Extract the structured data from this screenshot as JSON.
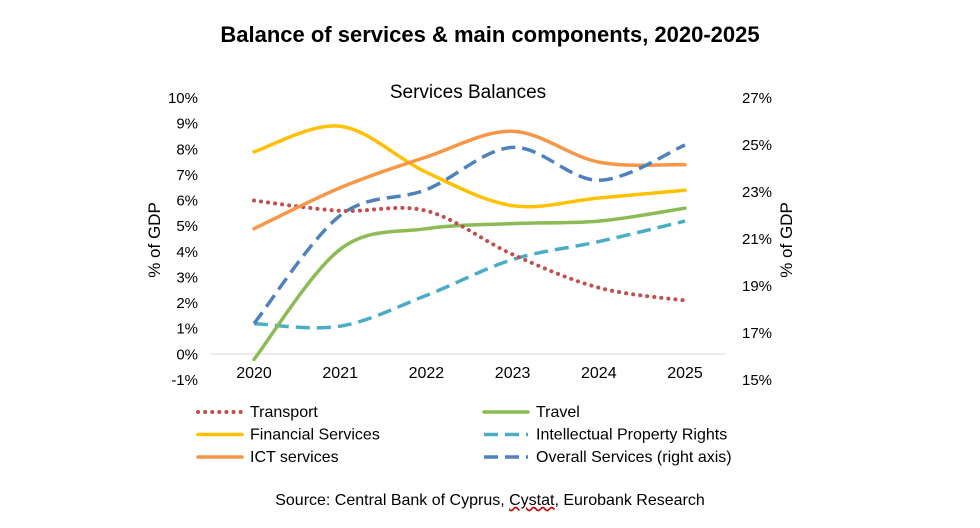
{
  "page": {
    "title": "Balance of services & main components, 2020-2025",
    "source_prefix": "Source: Central Bank of Cyprus, ",
    "source_cystat": "Cystat",
    "source_suffix": ", Eurobank Research"
  },
  "chart_data": {
    "type": "line",
    "title": "Services Balances",
    "ylabel": "% of GDP",
    "y2label": "% of GDP",
    "categories": [
      "2020",
      "2021",
      "2022",
      "2023",
      "2024",
      "2025"
    ],
    "ylim": [
      -1,
      10
    ],
    "y2lim": [
      15,
      27
    ],
    "yticks": [
      "-1%",
      "0%",
      "1%",
      "2%",
      "3%",
      "4%",
      "5%",
      "6%",
      "7%",
      "8%",
      "9%",
      "10%"
    ],
    "y2ticks": [
      "15%",
      "17%",
      "19%",
      "21%",
      "23%",
      "25%",
      "27%"
    ],
    "grid": false,
    "legend_position": "bottom",
    "series": [
      {
        "name": "Transport",
        "axis": "left",
        "color": "#C0504D",
        "style": "dotted",
        "values": [
          6.0,
          5.6,
          5.6,
          3.9,
          2.6,
          2.1
        ]
      },
      {
        "name": "Travel",
        "axis": "left",
        "color": "#8CBB54",
        "style": "solid",
        "values": [
          -0.2,
          4.1,
          4.9,
          5.1,
          5.2,
          5.7
        ]
      },
      {
        "name": "Financial Services",
        "axis": "left",
        "color": "#FFC000",
        "style": "solid",
        "values": [
          7.9,
          8.9,
          7.1,
          5.8,
          6.1,
          6.4
        ]
      },
      {
        "name": "Intellectual Property Rights",
        "axis": "left",
        "color": "#4BACC6",
        "style": "dashed",
        "values": [
          1.2,
          1.1,
          2.3,
          3.7,
          4.4,
          5.2
        ]
      },
      {
        "name": "ICT services",
        "axis": "left",
        "color": "#F79646",
        "style": "solid",
        "values": [
          4.9,
          6.5,
          7.7,
          8.7,
          7.5,
          7.4
        ]
      },
      {
        "name": "Overall Services (right axis)",
        "axis": "right",
        "color": "#4F81BD",
        "style": "dashed",
        "values": [
          17.4,
          22.0,
          23.1,
          24.9,
          23.5,
          25.0
        ]
      }
    ]
  }
}
